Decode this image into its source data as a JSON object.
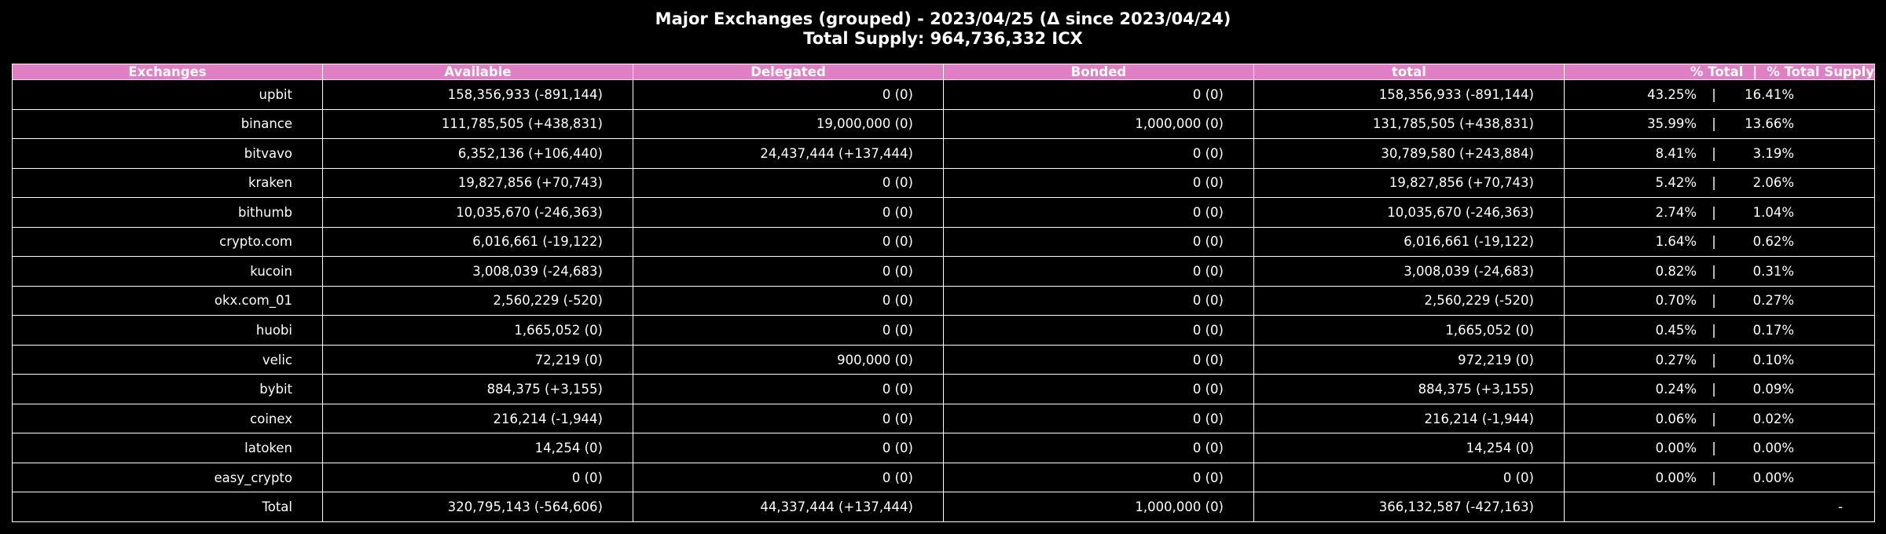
{
  "title": {
    "line1": "Major Exchanges (grouped) - 2023/04/25 (Δ since 2023/04/24)",
    "line2": "Total Supply: 964,736,332 ICX"
  },
  "colors": {
    "header_bg": "#e17fc5",
    "background": "#000000",
    "text": "#ffffff",
    "grid": "#ffffff"
  },
  "chart_data": {
    "type": "table",
    "title": "Major Exchanges (grouped) - 2023/04/25 (Δ since 2023/04/24)",
    "subtitle": "Total Supply: 964,736,332 ICX",
    "columns": [
      "Exchanges",
      "Available",
      "Delegated",
      "Bonded",
      "total",
      "% Total",
      "% Total Supply"
    ],
    "rows": [
      {
        "exchange": "upbit",
        "available": "158,356,933 (-891,144)",
        "delegated": "0 (0)",
        "bonded": "0 (0)",
        "total": "158,356,933 (-891,144)",
        "pct_total": "43.25%",
        "pct_supply": "16.41%"
      },
      {
        "exchange": "binance",
        "available": "111,785,505 (+438,831)",
        "delegated": "19,000,000 (0)",
        "bonded": "1,000,000 (0)",
        "total": "131,785,505 (+438,831)",
        "pct_total": "35.99%",
        "pct_supply": "13.66%"
      },
      {
        "exchange": "bitvavo",
        "available": "6,352,136 (+106,440)",
        "delegated": "24,437,444 (+137,444)",
        "bonded": "0 (0)",
        "total": "30,789,580 (+243,884)",
        "pct_total": "8.41%",
        "pct_supply": "3.19%"
      },
      {
        "exchange": "kraken",
        "available": "19,827,856 (+70,743)",
        "delegated": "0 (0)",
        "bonded": "0 (0)",
        "total": "19,827,856 (+70,743)",
        "pct_total": "5.42%",
        "pct_supply": "2.06%"
      },
      {
        "exchange": "bithumb",
        "available": "10,035,670 (-246,363)",
        "delegated": "0 (0)",
        "bonded": "0 (0)",
        "total": "10,035,670 (-246,363)",
        "pct_total": "2.74%",
        "pct_supply": "1.04%"
      },
      {
        "exchange": "crypto.com",
        "available": "6,016,661 (-19,122)",
        "delegated": "0 (0)",
        "bonded": "0 (0)",
        "total": "6,016,661 (-19,122)",
        "pct_total": "1.64%",
        "pct_supply": "0.62%"
      },
      {
        "exchange": "kucoin",
        "available": "3,008,039 (-24,683)",
        "delegated": "0 (0)",
        "bonded": "0 (0)",
        "total": "3,008,039 (-24,683)",
        "pct_total": "0.82%",
        "pct_supply": "0.31%"
      },
      {
        "exchange": "okx.com_01",
        "available": "2,560,229 (-520)",
        "delegated": "0 (0)",
        "bonded": "0 (0)",
        "total": "2,560,229 (-520)",
        "pct_total": "0.70%",
        "pct_supply": "0.27%"
      },
      {
        "exchange": "huobi",
        "available": "1,665,052 (0)",
        "delegated": "0 (0)",
        "bonded": "0 (0)",
        "total": "1,665,052 (0)",
        "pct_total": "0.45%",
        "pct_supply": "0.17%"
      },
      {
        "exchange": "velic",
        "available": "72,219 (0)",
        "delegated": "900,000 (0)",
        "bonded": "0 (0)",
        "total": "972,219 (0)",
        "pct_total": "0.27%",
        "pct_supply": "0.10%"
      },
      {
        "exchange": "bybit",
        "available": "884,375 (+3,155)",
        "delegated": "0 (0)",
        "bonded": "0 (0)",
        "total": "884,375 (+3,155)",
        "pct_total": "0.24%",
        "pct_supply": "0.09%"
      },
      {
        "exchange": "coinex",
        "available": "216,214 (-1,944)",
        "delegated": "0 (0)",
        "bonded": "0 (0)",
        "total": "216,214 (-1,944)",
        "pct_total": "0.06%",
        "pct_supply": "0.02%"
      },
      {
        "exchange": "latoken",
        "available": "14,254 (0)",
        "delegated": "0 (0)",
        "bonded": "0 (0)",
        "total": "14,254 (0)",
        "pct_total": "0.00%",
        "pct_supply": "0.00%"
      },
      {
        "exchange": "easy_crypto",
        "available": "0 (0)",
        "delegated": "0 (0)",
        "bonded": "0 (0)",
        "total": "0 (0)",
        "pct_total": "0.00%",
        "pct_supply": "0.00%"
      }
    ],
    "total_row": {
      "exchange": "Total",
      "available": "320,795,143 (-564,606)",
      "delegated": "44,337,444 (+137,444)",
      "bonded": "1,000,000 (0)",
      "total": "366,132,587 (-427,163)",
      "pct": "-"
    },
    "separator": "|"
  }
}
